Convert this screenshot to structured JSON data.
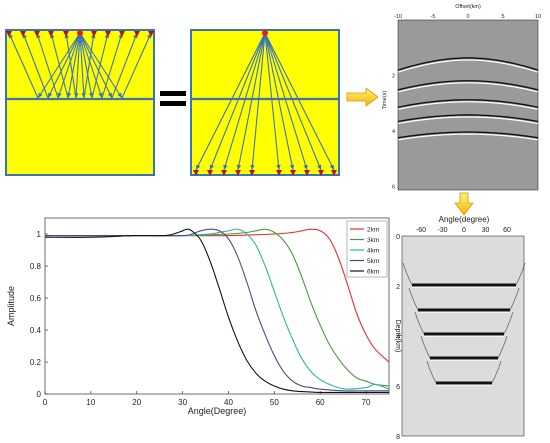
{
  "colors": {
    "panel_fill": "#ffff00",
    "panel_border": "#3a73b8",
    "ray": "#3a73b8",
    "source": "#e02020",
    "receiver": "#b01818",
    "arrow": "#f0c000"
  },
  "equals_symbol": "=",
  "gather": {
    "xlabel": "Offset(km)",
    "ylabel": "Time(s)",
    "xticks": [
      "-10",
      "-5",
      "0",
      "5",
      "10"
    ],
    "yticks": [
      "2",
      "4",
      "6"
    ]
  },
  "angle_gather": {
    "xlabel": "Angle(degree)",
    "ylabel": "Depth(km)",
    "xticks": [
      "-60",
      "-30",
      "0",
      "30",
      "60"
    ],
    "yticks": [
      "0",
      "2",
      "4",
      "6",
      "8"
    ]
  },
  "chart_data": {
    "type": "line",
    "xlabel": "Angle(Degree)",
    "ylabel": "Amplitude",
    "xlim": [
      0,
      75
    ],
    "ylim": [
      0,
      1.1
    ],
    "xticks": [
      "0",
      "10",
      "20",
      "30",
      "40",
      "50",
      "60",
      "70"
    ],
    "yticks": [
      "0",
      "0.2",
      "0.4",
      "0.6",
      "0.8",
      "1"
    ],
    "legend_position": "top-right",
    "series": [
      {
        "name": "2km",
        "color": "#e83030",
        "x": [
          0,
          10,
          20,
          30,
          40,
          50,
          54,
          56,
          58,
          60,
          62,
          64,
          66,
          68,
          70,
          72,
          75
        ],
        "y": [
          0.99,
          0.99,
          0.99,
          0.99,
          0.99,
          1.0,
          1.01,
          1.02,
          1.03,
          1.02,
          0.97,
          0.85,
          0.68,
          0.5,
          0.37,
          0.28,
          0.2
        ]
      },
      {
        "name": "3km",
        "color": "#4a9a3a",
        "x": [
          0,
          10,
          20,
          30,
          40,
          44,
          46,
          48,
          50,
          52,
          54,
          56,
          58,
          60,
          62,
          64,
          66,
          68,
          70,
          72,
          75
        ],
        "y": [
          0.99,
          0.99,
          0.99,
          0.99,
          1.0,
          1.01,
          1.02,
          1.03,
          1.01,
          0.96,
          0.87,
          0.73,
          0.57,
          0.43,
          0.31,
          0.22,
          0.15,
          0.1,
          0.08,
          0.06,
          0.05
        ]
      },
      {
        "name": "4km",
        "color": "#30b8a0",
        "x": [
          0,
          10,
          20,
          30,
          36,
          38,
          40,
          42,
          44,
          46,
          48,
          50,
          52,
          54,
          56,
          58,
          60,
          62,
          64,
          66,
          70,
          72,
          75
        ],
        "y": [
          0.99,
          0.99,
          0.99,
          0.99,
          1.0,
          1.01,
          1.02,
          1.03,
          1.0,
          0.93,
          0.8,
          0.64,
          0.48,
          0.34,
          0.22,
          0.14,
          0.09,
          0.06,
          0.04,
          0.03,
          0.04,
          0.06,
          0.03
        ]
      },
      {
        "name": "5km",
        "color": "#4a4a8a",
        "x": [
          0,
          10,
          20,
          30,
          32,
          34,
          36,
          38,
          40,
          42,
          44,
          46,
          48,
          50,
          52,
          54,
          56,
          58,
          60,
          65,
          70,
          75
        ],
        "y": [
          0.99,
          0.99,
          0.99,
          0.99,
          1.0,
          1.02,
          1.03,
          1.02,
          0.97,
          0.86,
          0.7,
          0.52,
          0.37,
          0.24,
          0.14,
          0.08,
          0.05,
          0.04,
          0.03,
          0.02,
          0.02,
          0.02
        ]
      },
      {
        "name": "6km",
        "color": "#111111",
        "x": [
          0,
          10,
          20,
          26,
          28,
          30,
          31,
          32,
          34,
          36,
          38,
          40,
          42,
          44,
          46,
          48,
          50,
          52,
          54,
          56,
          60,
          65,
          70,
          75
        ],
        "y": [
          0.98,
          0.98,
          0.99,
          0.99,
          1.0,
          1.02,
          1.03,
          1.02,
          0.96,
          0.83,
          0.66,
          0.48,
          0.33,
          0.21,
          0.13,
          0.08,
          0.05,
          0.03,
          0.02,
          0.015,
          0.01,
          0.01,
          0.01,
          0.01
        ]
      }
    ]
  }
}
